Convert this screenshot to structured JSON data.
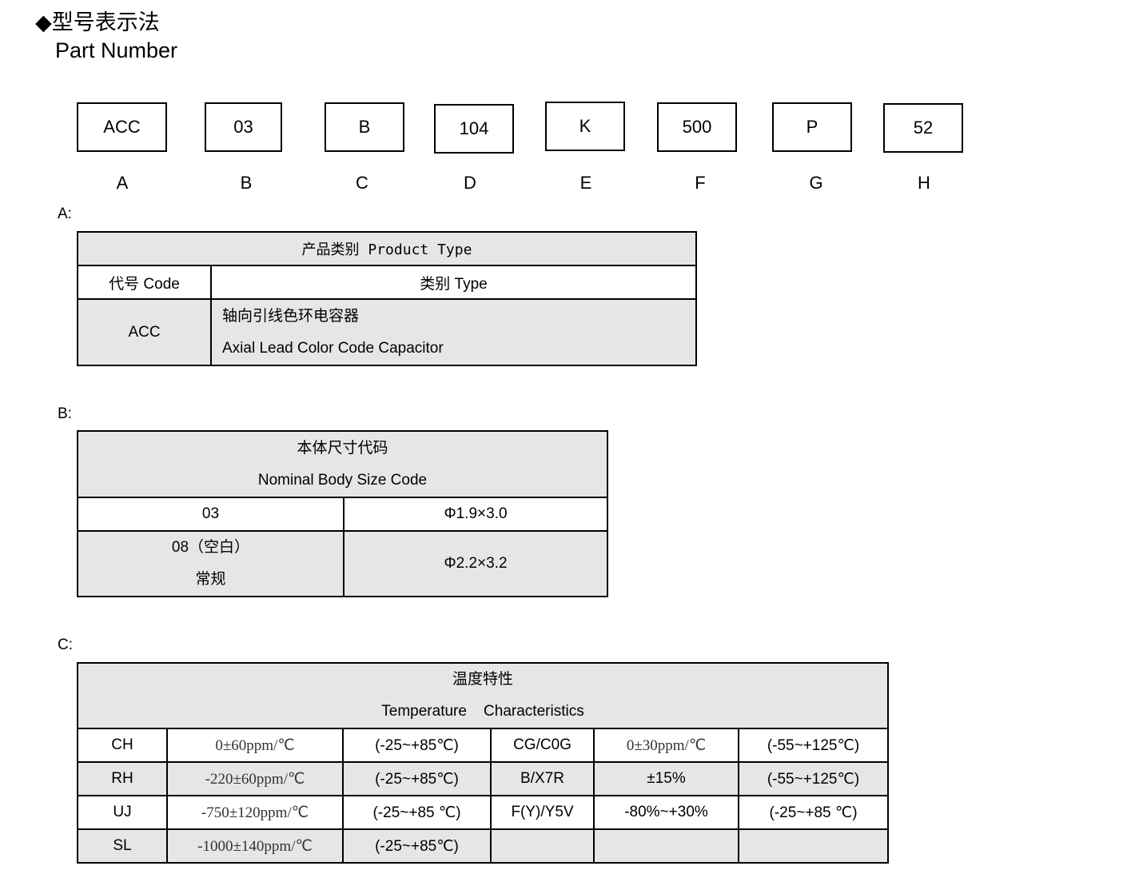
{
  "header": {
    "title_cn": "◆型号表示法",
    "title_en": "Part Number"
  },
  "part_boxes": [
    {
      "code": "ACC",
      "letter": "A"
    },
    {
      "code": "03",
      "letter": "B"
    },
    {
      "code": "B",
      "letter": "C"
    },
    {
      "code": "104",
      "letter": "D"
    },
    {
      "code": "K",
      "letter": "E"
    },
    {
      "code": "500",
      "letter": "F"
    },
    {
      "code": "P",
      "letter": "G"
    },
    {
      "code": "52",
      "letter": "H"
    }
  ],
  "section_a": {
    "label": "A:",
    "header": "产品类别 Product  Type",
    "col_code": "代号 Code",
    "col_type": "类别 Type",
    "rows": [
      {
        "code": "ACC",
        "type_cn": "轴向引线色环电容器",
        "type_en": "Axial Lead Color Code Capacitor"
      }
    ]
  },
  "section_b": {
    "label": "B:",
    "header_cn": "本体尺寸代码",
    "header_en": "Nominal Body Size Code",
    "rows": [
      {
        "code": "03",
        "size": "Φ1.9×3.0"
      },
      {
        "code": "08（空白）",
        "code_note": "常规",
        "size": "Φ2.2×3.2"
      }
    ]
  },
  "section_c": {
    "label": "C:",
    "header_cn": "温度特性",
    "header_en": "Temperature    Characteristics",
    "rows": [
      [
        "CH",
        "0±60ppm/℃",
        "(-25~+85℃)",
        "CG/C0G",
        "0±30ppm/℃",
        "(-55~+125℃)"
      ],
      [
        "RH",
        "-220±60ppm/℃",
        "(-25~+85℃)",
        "B/X7R",
        "±15%",
        "(-55~+125℃)"
      ],
      [
        "UJ",
        "-750±120ppm/℃",
        "(-25~+85 ℃)",
        "F(Y)/Y5V",
        "-80%~+30%",
        "(-25~+85 ℃)"
      ],
      [
        "SL",
        "-1000±140ppm/℃",
        "(-25~+85℃)",
        "",
        "",
        ""
      ]
    ]
  }
}
